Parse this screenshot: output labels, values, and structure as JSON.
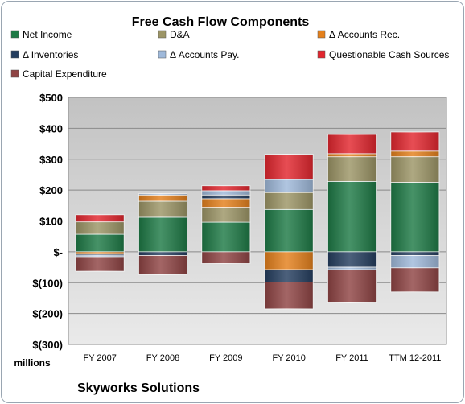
{
  "chart_data": {
    "type": "bar",
    "stacked": true,
    "title": "Free Cash Flow Components",
    "company": "Skyworks Solutions",
    "units_label": "millions",
    "categories": [
      "FY 2007",
      "FY 2008",
      "FY 2009",
      "FY 2010",
      "FY 2011",
      "TTM 12-2011"
    ],
    "y_ticks": [
      500,
      400,
      300,
      200,
      100,
      0,
      -100,
      -200,
      -300
    ],
    "y_tick_labels": [
      "$500",
      "$400",
      "$300",
      "$200",
      "$100",
      "$-",
      "$(100)",
      "$(200)",
      "$(300)"
    ],
    "ylim": [
      -300,
      500
    ],
    "grid": true,
    "legend_position": "top",
    "series": [
      {
        "name": "Net Income",
        "color": "#1e7a46",
        "values": [
          57,
          112,
          96,
          137,
          228,
          225
        ]
      },
      {
        "name": "D&A",
        "color": "#9c9566",
        "values": [
          40,
          52,
          48,
          55,
          80,
          83
        ]
      },
      {
        "name": "Δ Accounts Rec.",
        "color": "#e4801c",
        "values": [
          -6,
          20,
          28,
          -58,
          10,
          18
        ]
      },
      {
        "name": "Δ Inventories",
        "color": "#253e5f",
        "values": [
          -5,
          -12,
          12,
          -40,
          -50,
          -12
        ]
      },
      {
        "name": "Δ Accounts Pay.",
        "color": "#9fb9da",
        "values": [
          -5,
          4,
          14,
          42,
          -8,
          -40
        ]
      },
      {
        "name": "Questionable Cash Sources",
        "color": "#e2262e",
        "values": [
          23,
          0,
          16,
          82,
          62,
          62
        ]
      },
      {
        "name": "Capital Expenditure",
        "color": "#8f4444",
        "values": [
          -47,
          -62,
          -38,
          -87,
          -105,
          -78
        ]
      }
    ]
  }
}
